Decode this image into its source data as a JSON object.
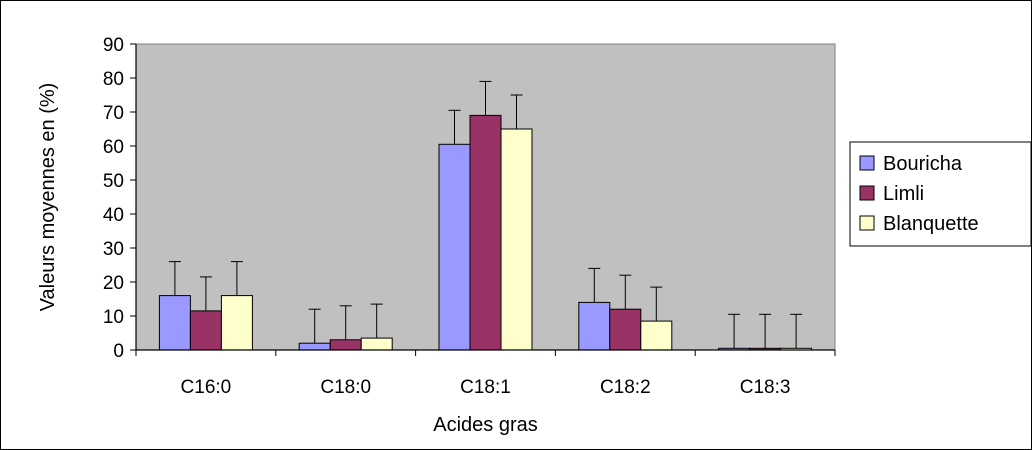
{
  "chart_data": {
    "type": "bar",
    "title": "",
    "xlabel": "Acides gras",
    "ylabel": "Valeurs moyennes en (%)",
    "ylim": [
      0,
      90
    ],
    "yticks": [
      0,
      10,
      20,
      30,
      40,
      50,
      60,
      70,
      80,
      90
    ],
    "categories": [
      "C16:0",
      "C18:0",
      "C18:1",
      "C18:2",
      "C18:3"
    ],
    "series": [
      {
        "name": "Bouricha",
        "color": "#9999FF",
        "values": [
          16,
          2,
          60.5,
          14,
          0.5
        ],
        "errors": [
          10,
          10,
          10,
          10,
          10
        ]
      },
      {
        "name": "Limli",
        "color": "#993366",
        "values": [
          11.5,
          3,
          69,
          12,
          0.5
        ],
        "errors": [
          10,
          10,
          10,
          10,
          10
        ]
      },
      {
        "name": "Blanquette",
        "color": "#FFFFCC",
        "values": [
          16,
          3.5,
          65,
          8.5,
          0.5
        ],
        "errors": [
          10,
          10,
          10,
          10,
          10
        ]
      }
    ],
    "plot_background": "#C0C0C0",
    "grid": false,
    "legend_position": "right"
  }
}
